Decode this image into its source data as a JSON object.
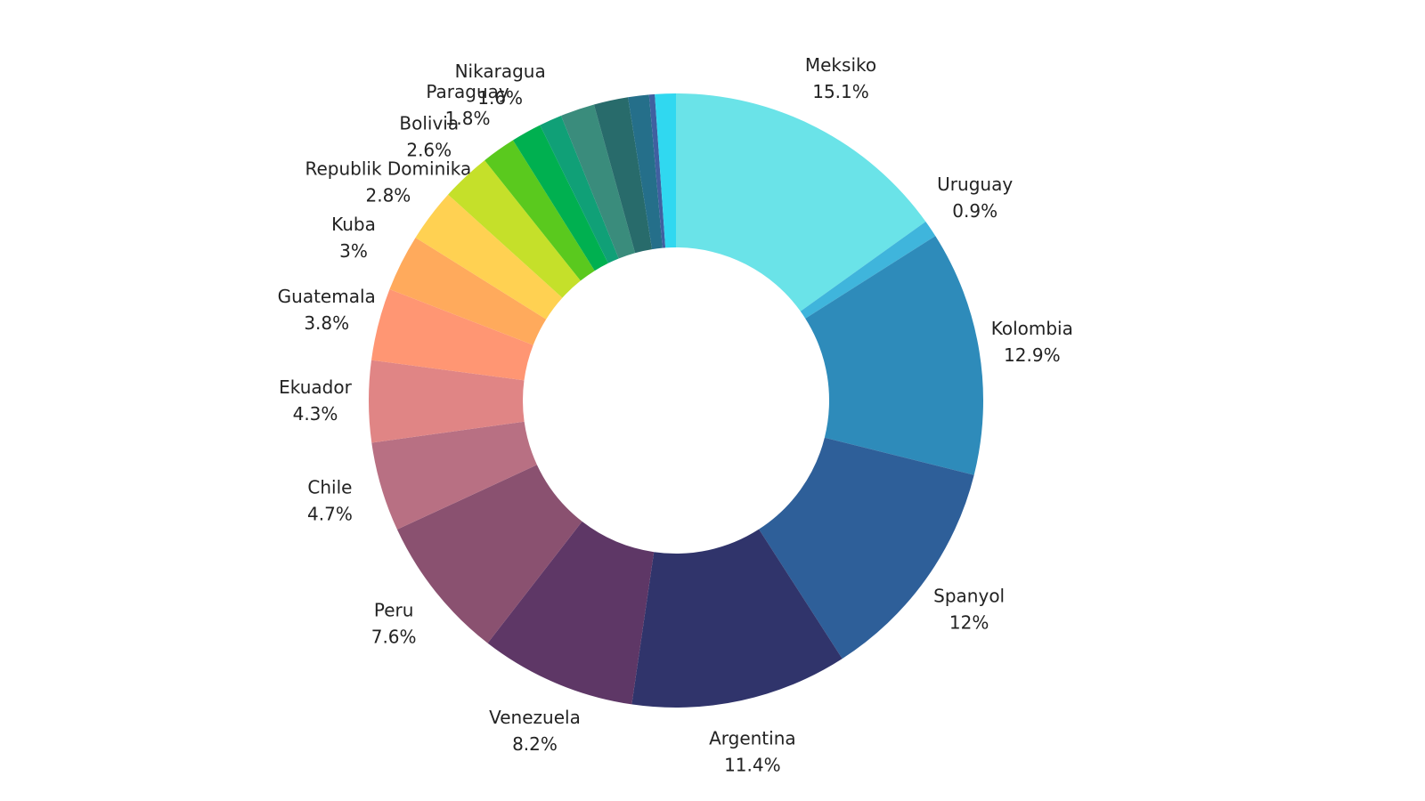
{
  "chart_data": {
    "type": "donut",
    "categories": [
      "Meksiko",
      "Uruguay",
      "Kolombia",
      "Spanyol",
      "Argentina",
      "Venezuela",
      "Peru",
      "Chile",
      "Ekuador",
      "Guatemala",
      "Kuba",
      "Republik Dominika",
      "Bolivia",
      "Paraguay",
      "Nikaragua",
      null,
      null,
      null,
      null,
      null,
      null
    ],
    "values": [
      15.1,
      0.9,
      12.9,
      12,
      11.4,
      8.2,
      7.6,
      4.7,
      4.3,
      3.8,
      3,
      2.8,
      2.6,
      1.8,
      1.6,
      1.2,
      1.8,
      1.8,
      1.1,
      0.3,
      1.1
    ],
    "value_labels": [
      "15.1%",
      "0.9%",
      "12.9%",
      "12%",
      "11.4%",
      "8.2%",
      "7.6%",
      "4.7%",
      "4.3%",
      "3.8%",
      "3%",
      "2.8%",
      "2.6%",
      "1.8%",
      "1.6%",
      null,
      null,
      null,
      null,
      null,
      null
    ],
    "colors": [
      "#6ae3e8",
      "#3fb5dc",
      "#2e8bba",
      "#2e5f99",
      "#30346b",
      "#5e3766",
      "#8a5170",
      "#b87083",
      "#e08585",
      "#ff9673",
      "#ffaa5c",
      "#ffd152",
      "#c5e02a",
      "#5ac91e",
      "#00b050",
      "#10a077",
      "#3a8c7c",
      "#286b6b",
      "#256f8a",
      "#4060a0",
      "#30d8f0"
    ]
  }
}
